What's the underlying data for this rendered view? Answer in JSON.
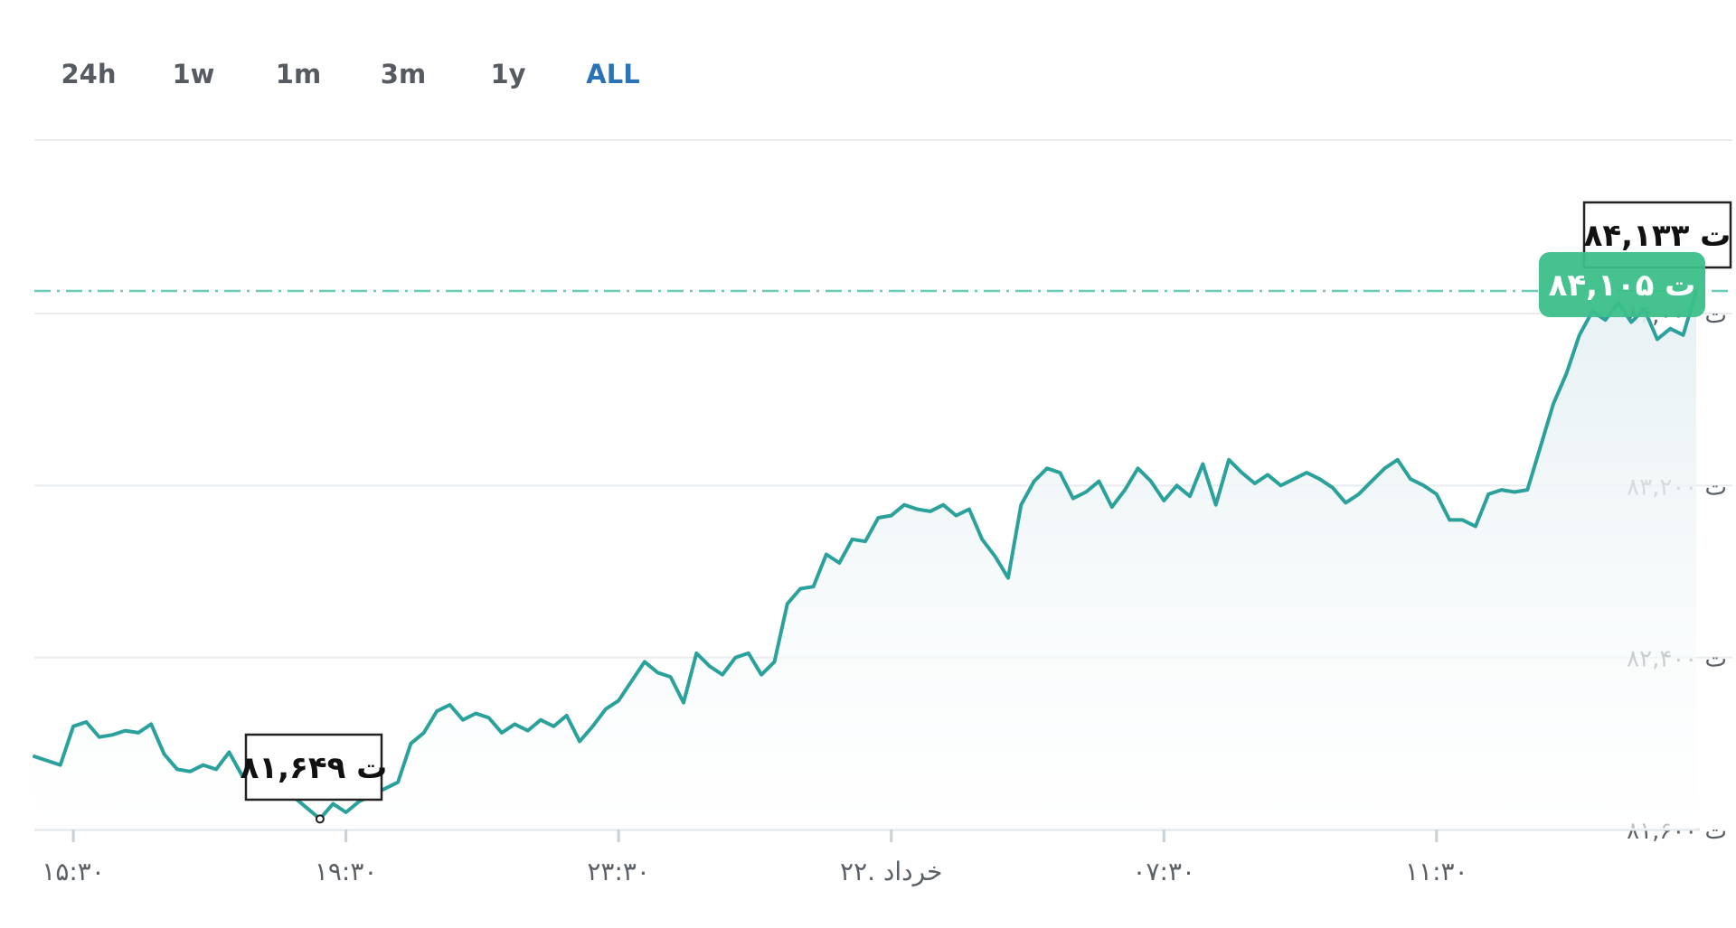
{
  "range_tabs": [
    {
      "label": "24h",
      "active": false
    },
    {
      "label": "1w",
      "active": false
    },
    {
      "label": "1m",
      "active": false
    },
    {
      "label": "3m",
      "active": false
    },
    {
      "label": "1y",
      "active": false
    },
    {
      "label": "ALL",
      "active": true
    }
  ],
  "colors": {
    "line": "#2aa19b",
    "area_top": "#e6f0f3",
    "current_badge": "#3cbf8a",
    "active_tab": "#2b73b5",
    "tab": "#555b61",
    "grid": "#e8ecef"
  },
  "chart_data": {
    "type": "area",
    "ylim": [
      81600,
      84300
    ],
    "grid": true,
    "y_ticks": [
      {
        "value": 81600,
        "label": "۸۱,۶۰۰ ت"
      },
      {
        "value": 82400,
        "label": "۸۲,۴۰۰ ت"
      },
      {
        "value": 83200,
        "label": "۸۳,۲۰۰ ت"
      },
      {
        "value": 84000,
        "label": "۸۴,۰۰۰ ت"
      }
    ],
    "x_ticks": [
      {
        "index": 3,
        "label": "۱۵:۳۰"
      },
      {
        "index": 24,
        "label": "۱۹:۳۰"
      },
      {
        "index": 45,
        "label": "۲۳:۳۰"
      },
      {
        "index": 66,
        "label": "۲۲. خرداد"
      },
      {
        "index": 87,
        "label": "۰۷:۳۰"
      },
      {
        "index": 108,
        "label": "۱۱:۳۰"
      }
    ],
    "series": [
      {
        "values": [
          81940,
          81920,
          81900,
          82080,
          82100,
          82030,
          82040,
          82060,
          82050,
          82090,
          81950,
          81880,
          81870,
          81900,
          81880,
          81960,
          81850,
          81870,
          81890,
          81880,
          81750,
          81700,
          81649,
          81720,
          81680,
          81730,
          81760,
          81790,
          81820,
          82000,
          82050,
          82150,
          82180,
          82110,
          82140,
          82120,
          82050,
          82090,
          82060,
          82110,
          82080,
          82130,
          82010,
          82080,
          82160,
          82200,
          82290,
          82380,
          82330,
          82310,
          82190,
          82420,
          82360,
          82320,
          82400,
          82420,
          82320,
          82380,
          82650,
          82720,
          82730,
          82880,
          82840,
          82950,
          82940,
          83050,
          83060,
          83110,
          83090,
          83080,
          83110,
          83060,
          83090,
          82950,
          82870,
          82770,
          83110,
          83220,
          83280,
          83260,
          83140,
          83170,
          83220,
          83100,
          83180,
          83280,
          83220,
          83130,
          83200,
          83150,
          83300,
          83110,
          83320,
          83260,
          83210,
          83250,
          83200,
          83230,
          83260,
          83230,
          83190,
          83120,
          83160,
          83220,
          83280,
          83320,
          83230,
          83200,
          83160,
          83040,
          83040,
          83010,
          83160,
          83180,
          83170,
          83180,
          83380,
          83580,
          83720,
          83900,
          84010,
          83970,
          84050,
          83960,
          84020,
          83880,
          83930,
          83900,
          84105
        ]
      }
    ],
    "current_value": 84105,
    "current_label": "۸۴,۱۰۵ ت",
    "annotations": [
      {
        "index": 122,
        "value": 84133,
        "label": "۸۴,۱۳۳ ت",
        "kind": "max"
      },
      {
        "index": 22,
        "value": 81649,
        "label": "۸۱,۶۴۹ ت",
        "kind": "min"
      }
    ]
  }
}
